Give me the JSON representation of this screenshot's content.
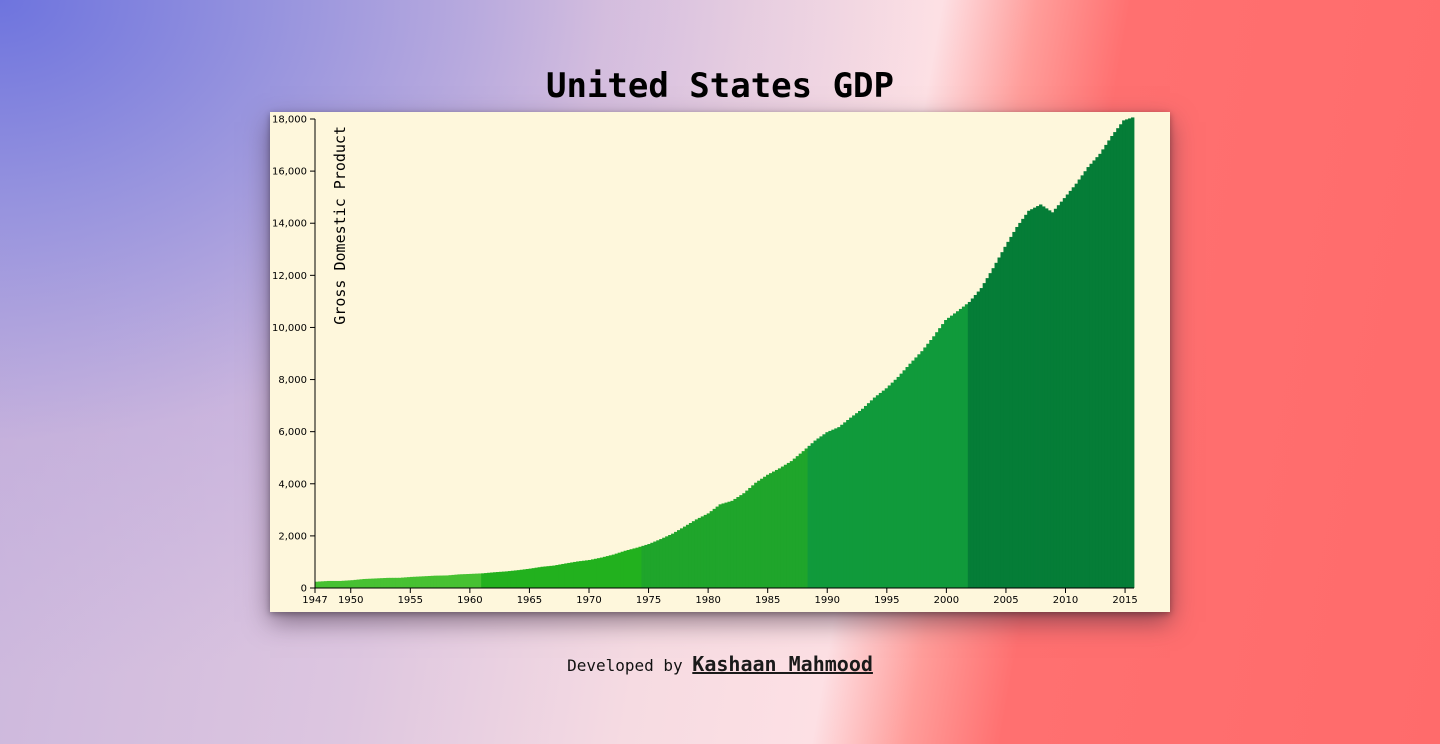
{
  "page": {
    "title": "United States GDP",
    "footer_prefix": "Developed by",
    "footer_author": "Kashaan Mahmood"
  },
  "colors": {
    "card_background": "#fef7dc",
    "era_colors": [
      "#47c132",
      "#22b11e",
      "#1fa52b",
      "#109a3b",
      "#057d37"
    ]
  },
  "chart_data": {
    "type": "bar",
    "title": "United States GDP",
    "xlabel": "",
    "ylabel": "Gross Domestic Product",
    "x_tick_labels": [
      "1947",
      "1950",
      "1955",
      "1960",
      "1965",
      "1970",
      "1975",
      "1980",
      "1985",
      "1990",
      "1995",
      "2000",
      "2005",
      "2010",
      "2015"
    ],
    "y_tick_labels": [
      "0",
      "2,000",
      "4,000",
      "6,000",
      "8,000",
      "10,000",
      "12,000",
      "14,000",
      "16,000",
      "18,000"
    ],
    "xlim": [
      1947,
      2015.75
    ],
    "ylim": [
      0,
      18000
    ],
    "frequency": "quarterly",
    "grid": false,
    "era_breaks_year": [
      1947,
      1961,
      1974.5,
      1988.5,
      2002,
      2016
    ],
    "annual_anchor_values": {
      "years": [
        1947,
        1948,
        1949,
        1950,
        1951,
        1952,
        1953,
        1954,
        1955,
        1956,
        1957,
        1958,
        1959,
        1960,
        1961,
        1962,
        1963,
        1964,
        1965,
        1966,
        1967,
        1968,
        1969,
        1970,
        1971,
        1972,
        1973,
        1974,
        1975,
        1976,
        1977,
        1978,
        1979,
        1980,
        1981,
        1982,
        1983,
        1984,
        1985,
        1986,
        1987,
        1988,
        1989,
        1990,
        1991,
        1992,
        1993,
        1994,
        1995,
        1996,
        1997,
        1998,
        1999,
        2000,
        2001,
        2002,
        2003,
        2004,
        2005,
        2006,
        2007,
        2008,
        2009,
        2010,
        2011,
        2012,
        2013,
        2014,
        2015,
        2015.75
      ],
      "values": [
        243,
        270,
        270,
        300,
        346,
        367,
        389,
        391,
        426,
        449,
        474,
        482,
        523,
        542,
        563,
        605,
        638,
        686,
        744,
        815,
        861,
        943,
        1019,
        1075,
        1168,
        1282,
        1429,
        1548,
        1688,
        1878,
        2086,
        2357,
        2633,
        2863,
        3211,
        3345,
        3638,
        4041,
        4347,
        4591,
        4870,
        5253,
        5658,
        5980,
        6174,
        6539,
        6879,
        7309,
        7664,
        8100,
        8608,
        9089,
        9661,
        10285,
        10622,
        10978,
        11511,
        12275,
        13094,
        13856,
        14478,
        14719,
        14419,
        14964,
        15518,
        16155,
        16663,
        17348,
        17947,
        18060
      ]
    }
  }
}
